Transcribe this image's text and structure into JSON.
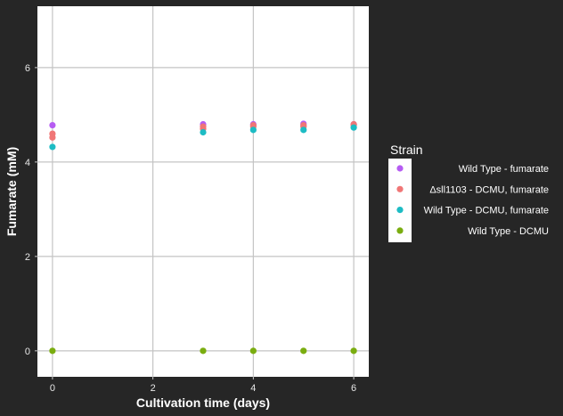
{
  "chart_data": {
    "type": "scatter",
    "xlabel": "Cultivation time (days)",
    "ylabel": "Fumarate (mM)",
    "xlim": [
      -0.3,
      6.3
    ],
    "ylim": [
      -0.55,
      7.3
    ],
    "x_ticks": [
      0,
      2,
      4,
      6
    ],
    "y_ticks": [
      0,
      2,
      4,
      6
    ],
    "grid": true,
    "legend": {
      "title": "Strain",
      "placement": "right"
    },
    "series": [
      {
        "name": "Wild Type - fumarate",
        "color": "#b65cf2",
        "points": [
          [
            0,
            4.78
          ],
          [
            3,
            4.8
          ],
          [
            4,
            4.8
          ],
          [
            5,
            4.81
          ],
          [
            6,
            4.8
          ]
        ]
      },
      {
        "name": "Δsll1103 - DCMU, fumarate",
        "color": "#f07676",
        "points": [
          [
            0,
            4.6
          ],
          [
            0,
            4.52
          ],
          [
            3,
            4.7
          ],
          [
            3,
            4.75
          ],
          [
            4,
            4.78
          ],
          [
            4,
            4.75
          ],
          [
            5,
            4.78
          ],
          [
            5,
            4.75
          ],
          [
            6,
            4.8
          ],
          [
            6,
            4.78
          ]
        ]
      },
      {
        "name": "Wild Type - DCMU, fumarate",
        "color": "#1dbcc4",
        "points": [
          [
            0,
            4.32
          ],
          [
            3,
            4.63
          ],
          [
            4,
            4.68
          ],
          [
            5,
            4.68
          ],
          [
            6,
            4.73
          ]
        ]
      },
      {
        "name": "Wild Type - DCMU",
        "color": "#7aad10",
        "points": [
          [
            0,
            0
          ],
          [
            3,
            0
          ],
          [
            4,
            0
          ],
          [
            5,
            0
          ],
          [
            6,
            0
          ]
        ]
      }
    ]
  }
}
